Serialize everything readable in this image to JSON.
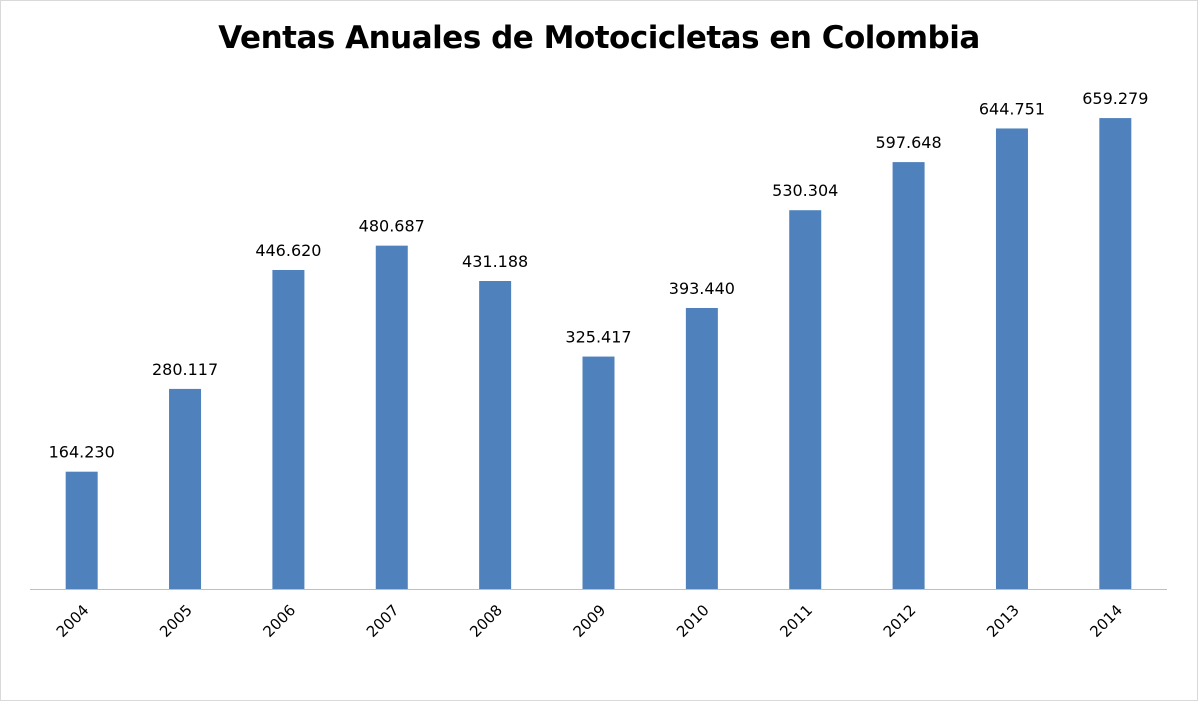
{
  "chart_data": {
    "type": "bar",
    "title": "Ventas Anuales de Motocicletas en Colombia",
    "xlabel": "",
    "ylabel": "",
    "categories": [
      "2004",
      "2005",
      "2006",
      "2007",
      "2008",
      "2009",
      "2010",
      "2011",
      "2012",
      "2013",
      "2014"
    ],
    "values": [
      164230,
      280117,
      446620,
      480687,
      431188,
      325417,
      393440,
      530304,
      597648,
      644751,
      659279
    ],
    "data_labels": [
      "164.230",
      "280.117",
      "446.620",
      "480.687",
      "431.188",
      "325.417",
      "393.440",
      "530.304",
      "597.648",
      "644.751",
      "659.279"
    ],
    "ylim": [
      0,
      700000
    ],
    "y_axis_visible": false,
    "grid": false,
    "legend": "none",
    "bar_color": "#4F81BD",
    "axis_color": "#bfbfbf"
  }
}
